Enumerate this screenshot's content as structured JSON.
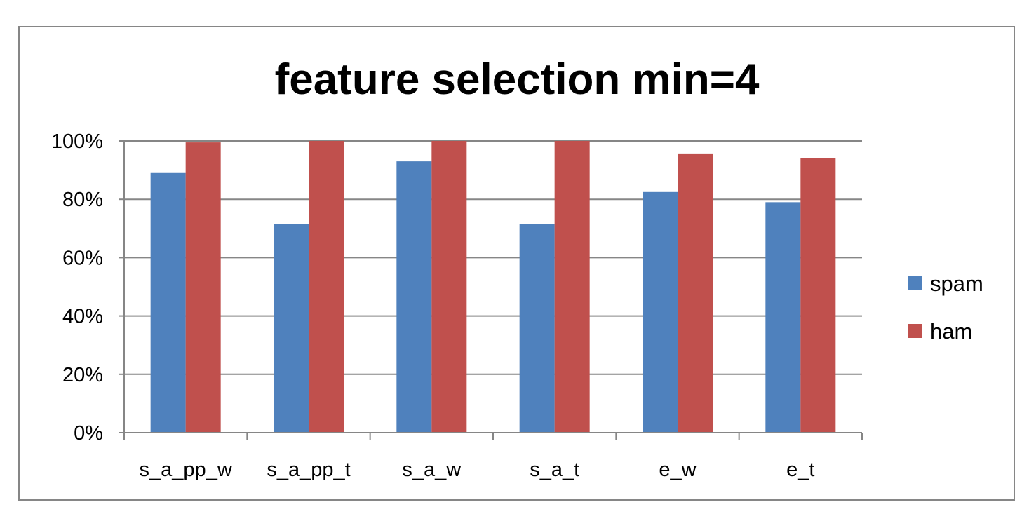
{
  "chart_data": {
    "type": "bar",
    "title": "feature selection min=4",
    "xlabel": "",
    "ylabel": "",
    "categories": [
      "s_a_pp_w",
      "s_a_pp_t",
      "s_a_w",
      "s_a_t",
      "e_w",
      "e_t"
    ],
    "series": [
      {
        "name": "spam",
        "values": [
          89,
          71.5,
          93,
          71.5,
          82.5,
          79
        ],
        "color": "#4F81BD"
      },
      {
        "name": "ham",
        "values": [
          99.5,
          100,
          100,
          100,
          95.7,
          94.2
        ],
        "color": "#C0504D"
      }
    ],
    "ylim": [
      0,
      100
    ],
    "y_ticks": [
      0,
      20,
      40,
      60,
      80,
      100
    ],
    "y_tick_labels": [
      "0%",
      "20%",
      "40%",
      "60%",
      "80%",
      "100%"
    ],
    "grid": true,
    "legend_position": "right"
  }
}
